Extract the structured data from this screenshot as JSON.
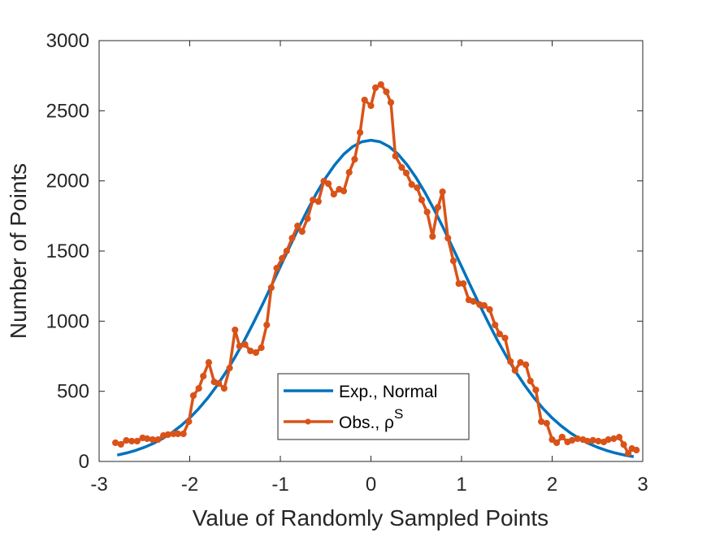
{
  "chart_data": {
    "type": "line",
    "xlabel": "Value of Randomly Sampled Points",
    "ylabel": "Number of Points",
    "xlim": [
      -3,
      3
    ],
    "xticks": [
      -3,
      -2,
      -1,
      0,
      1,
      2,
      3
    ],
    "ylim": [
      0,
      3000
    ],
    "yticks": [
      0,
      500,
      1000,
      1500,
      2000,
      2500,
      3000
    ],
    "grid": false,
    "legend": "lower-center",
    "series": [
      {
        "name": "Exp., Normal",
        "color": "#0072BD",
        "marker": "none",
        "x": [
          -2.8,
          -2.7,
          -2.6,
          -2.5,
          -2.4,
          -2.3,
          -2.2,
          -2.1,
          -2.0,
          -1.9,
          -1.8,
          -1.7,
          -1.6,
          -1.5,
          -1.4,
          -1.3,
          -1.2,
          -1.1,
          -1.0,
          -0.9,
          -0.8,
          -0.7,
          -0.6,
          -0.5,
          -0.4,
          -0.3,
          -0.2,
          -0.1,
          0,
          0.1,
          0.2,
          0.3,
          0.4,
          0.5,
          0.6,
          0.7,
          0.8,
          0.9,
          1.0,
          1.1,
          1.2,
          1.3,
          1.4,
          1.5,
          1.6,
          1.7,
          1.8,
          1.9,
          2.0,
          2.1,
          2.2,
          2.3,
          2.4,
          2.5,
          2.6,
          2.7,
          2.8,
          2.9
        ],
        "values": [
          45,
          60,
          78,
          101,
          129,
          163,
          204,
          253,
          310,
          377,
          453,
          540,
          637,
          744,
          859,
          984,
          1115,
          1251,
          1389,
          1527,
          1663,
          1792,
          1913,
          2021,
          2114,
          2190,
          2245,
          2279,
          2290,
          2279,
          2245,
          2190,
          2114,
          2021,
          1913,
          1792,
          1663,
          1527,
          1389,
          1251,
          1115,
          984,
          859,
          744,
          637,
          540,
          453,
          377,
          310,
          253,
          204,
          163,
          129,
          101,
          78,
          60,
          45,
          34
        ]
      },
      {
        "name": "Obs., ρ",
        "name_superscript": "S",
        "color": "#D95319",
        "marker": "circle",
        "x": [
          -2.82,
          -2.76,
          -2.7,
          -2.64,
          -2.58,
          -2.52,
          -2.47,
          -2.41,
          -2.35,
          -2.29,
          -2.24,
          -2.18,
          -2.13,
          -2.07,
          -2.01,
          -1.96,
          -1.9,
          -1.85,
          -1.79,
          -1.73,
          -1.68,
          -1.62,
          -1.56,
          -1.5,
          -1.45,
          -1.39,
          -1.33,
          -1.27,
          -1.21,
          -1.15,
          -1.1,
          -1.04,
          -0.98,
          -0.93,
          -0.87,
          -0.81,
          -0.76,
          -0.7,
          -0.64,
          -0.58,
          -0.52,
          -0.47,
          -0.41,
          -0.35,
          -0.3,
          -0.24,
          -0.18,
          -0.12,
          -0.07,
          0.0,
          0.05,
          0.11,
          0.17,
          0.22,
          0.27,
          0.34,
          0.39,
          0.45,
          0.51,
          0.56,
          0.62,
          0.68,
          0.74,
          0.79,
          0.85,
          0.91,
          0.97,
          1.02,
          1.08,
          1.13,
          1.2,
          1.25,
          1.31,
          1.37,
          1.42,
          1.48,
          1.54,
          1.59,
          1.65,
          1.71,
          1.76,
          1.82,
          1.88,
          1.94,
          2.0,
          2.05,
          2.11,
          2.17,
          2.22,
          2.28,
          2.34,
          2.39,
          2.45,
          2.51,
          2.57,
          2.62,
          2.68,
          2.74,
          2.79,
          2.84,
          2.88,
          2.93
        ],
        "values": [
          133,
          122,
          150,
          145,
          145,
          168,
          162,
          156,
          156,
          185,
          191,
          197,
          197,
          197,
          284,
          469,
          521,
          608,
          706,
          567,
          556,
          521,
          666,
          938,
          822,
          834,
          788,
          776,
          811,
          973,
          1239,
          1378,
          1448,
          1500,
          1592,
          1679,
          1639,
          1731,
          1864,
          1853,
          1998,
          1980,
          1905,
          1940,
          1928,
          2061,
          2154,
          2345,
          2577,
          2536,
          2664,
          2687,
          2635,
          2559,
          2177,
          2096,
          2056,
          1974,
          1951,
          1864,
          1778,
          1604,
          1812,
          1922,
          1592,
          1430,
          1268,
          1268,
          1152,
          1141,
          1118,
          1112,
          1083,
          973,
          909,
          880,
          712,
          649,
          706,
          689,
          573,
          510,
          284,
          272,
          156,
          133,
          174,
          139,
          151,
          162,
          156,
          145,
          151,
          145,
          139,
          156,
          162,
          173,
          120,
          58,
          92,
          81
        ]
      }
    ]
  }
}
